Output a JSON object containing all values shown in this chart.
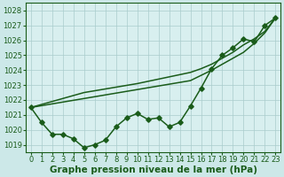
{
  "xlabel": "Graphe pression niveau de la mer (hPa)",
  "background_color": "#cce8e8",
  "plot_background": "#d8efef",
  "grid_color": "#aacccc",
  "line_color": "#1a5c1a",
  "x": [
    0,
    1,
    2,
    3,
    4,
    5,
    6,
    7,
    8,
    9,
    10,
    11,
    12,
    13,
    14,
    15,
    16,
    17,
    18,
    19,
    20,
    21,
    22,
    23
  ],
  "y_main": [
    1021.5,
    1020.5,
    1019.7,
    1019.7,
    1019.4,
    1018.8,
    1019.0,
    1019.3,
    1020.2,
    1020.8,
    1021.1,
    1020.7,
    1020.8,
    1020.2,
    1020.5,
    1021.6,
    1022.8,
    1024.1,
    1025.0,
    1025.5,
    1026.1,
    1025.9,
    1027.0,
    1027.5
  ],
  "y_trend1": [
    1021.5,
    1021.62,
    1021.74,
    1021.86,
    1021.98,
    1022.1,
    1022.22,
    1022.34,
    1022.46,
    1022.58,
    1022.7,
    1022.82,
    1022.94,
    1023.06,
    1023.18,
    1023.3,
    1023.65,
    1024.0,
    1024.4,
    1024.8,
    1025.2,
    1025.8,
    1026.5,
    1027.5
  ],
  "y_trend2": [
    1021.5,
    1021.7,
    1021.9,
    1022.1,
    1022.3,
    1022.5,
    1022.62,
    1022.74,
    1022.86,
    1022.98,
    1023.1,
    1023.25,
    1023.4,
    1023.55,
    1023.7,
    1023.85,
    1024.1,
    1024.4,
    1024.8,
    1025.2,
    1025.7,
    1026.1,
    1026.6,
    1027.5
  ],
  "ylim": [
    1018.5,
    1028.5
  ],
  "xlim": [
    -0.5,
    23.5
  ],
  "yticks": [
    1019,
    1020,
    1021,
    1022,
    1023,
    1024,
    1025,
    1026,
    1027,
    1028
  ],
  "xticks": [
    0,
    1,
    2,
    3,
    4,
    5,
    6,
    7,
    8,
    9,
    10,
    11,
    12,
    13,
    14,
    15,
    16,
    17,
    18,
    19,
    20,
    21,
    22,
    23
  ],
  "marker": "D",
  "markersize": 2.8,
  "linewidth": 1.1,
  "xlabel_fontsize": 7.5,
  "tick_fontsize": 6.0
}
